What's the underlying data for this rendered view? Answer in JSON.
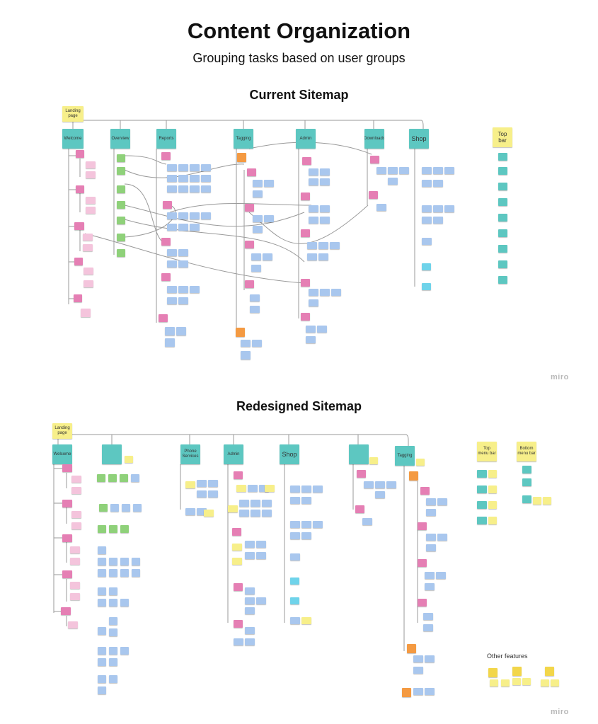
{
  "title": "Content Organization",
  "subtitle": "Grouping tasks based on user groups",
  "current": {
    "heading": "Current Sitemap",
    "root": "Landing page",
    "columns": [
      "Welcome",
      "Overview",
      "Reports",
      "Tagging",
      "Admin",
      "Downloads",
      "Shop"
    ],
    "topbar": "Top bar",
    "watermark": "miro"
  },
  "redesigned": {
    "heading": "Redesigned Sitemap",
    "root": "Landing page",
    "columns": [
      "Welcome",
      "",
      "Phone Services",
      "Admin",
      "Shop",
      "",
      "Tagging"
    ],
    "top_menu": "Top menu bar",
    "bottom_menu": "Bottom menu bar",
    "other_features": "Other features",
    "watermark": "miro"
  },
  "colors": {
    "category": "#5dc7c1",
    "overview": "#8fd17a",
    "subgroup": "#e57fb4",
    "task": "#a9c7ee",
    "new_feature": "#f7ef8a",
    "tagging_alert": "#f49a42"
  }
}
